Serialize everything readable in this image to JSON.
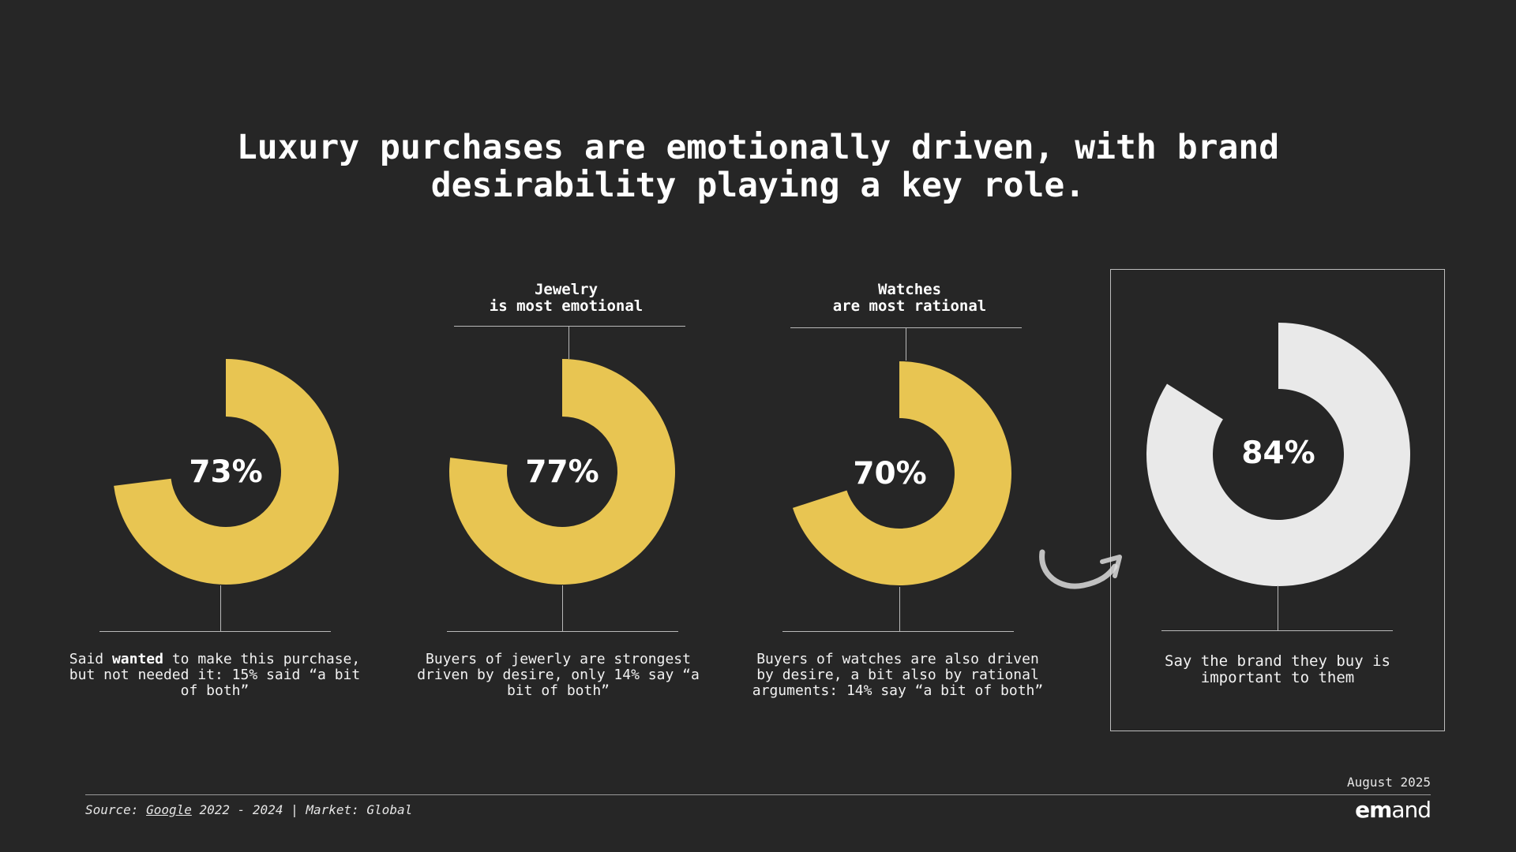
{
  "title": {
    "line1": "Luxury purchases are emotionally driven, with brand",
    "line2": "desirability playing a key role."
  },
  "chart_data": [
    {
      "type": "pie",
      "variant": "donut",
      "values": [
        73
      ],
      "label": "73%",
      "color": "#E8C552",
      "header": "",
      "caption": {
        "pre": "Said ",
        "bold": "wanted",
        "post": " to make this purchase, but not needed it: 15% said “a bit of both”"
      }
    },
    {
      "type": "pie",
      "variant": "donut",
      "values": [
        77
      ],
      "label": "77%",
      "color": "#E8C552",
      "header": {
        "line1": "Jewelry",
        "line2": "is most emotional"
      },
      "caption": "Buyers of jewerly are strongest driven by desire, only 14% say “a bit of both”"
    },
    {
      "type": "pie",
      "variant": "donut",
      "values": [
        70
      ],
      "label": "70%",
      "color": "#E8C552",
      "header": {
        "line1": "Watches",
        "line2": "are most rational"
      },
      "caption": "Buyers of watches are also driven by desire, a bit also by rational arguments: 14% say “a bit of both”"
    },
    {
      "type": "pie",
      "variant": "donut",
      "values": [
        84
      ],
      "label": "84%",
      "color": "#E9E9E9",
      "header": "",
      "caption": "Say the brand they buy is important to them"
    }
  ],
  "footer": {
    "source_prefix": "Source: ",
    "source_link": "Google",
    "source_suffix": " 2022 - 2024 | Market: Global",
    "date": "August 2025",
    "logo_bold": "em",
    "logo_rest": "and"
  },
  "colors": {
    "background": "#262626",
    "accent": "#E8C552",
    "highlight": "#E9E9E9"
  },
  "icons": [
    "curved-arrow-icon"
  ]
}
